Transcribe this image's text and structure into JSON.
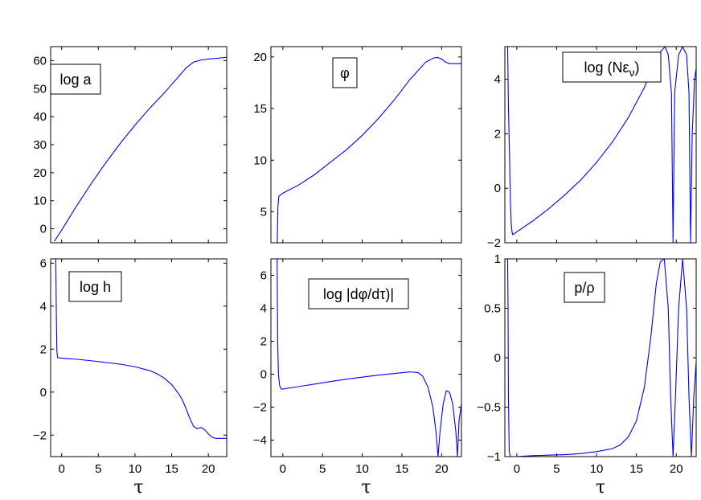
{
  "chart_data": [
    {
      "type": "line",
      "annotation": "log a",
      "xlabel": "",
      "xlim": [
        -1.5,
        22.5
      ],
      "ylim": [
        -5,
        65
      ],
      "xticks": [
        0,
        5,
        10,
        15,
        20
      ],
      "yticks": [
        0,
        10,
        20,
        30,
        40,
        50,
        60
      ],
      "color": "#0000ff",
      "x": [
        -1,
        0,
        2,
        4,
        6,
        8,
        10,
        12,
        14,
        15,
        16,
        17,
        18,
        19,
        20,
        21,
        22.5
      ],
      "y": [
        -4.5,
        -0.5,
        8,
        16,
        23.5,
        30.5,
        37,
        43,
        48.5,
        51.5,
        54.5,
        57.5,
        59.5,
        60.2,
        60.6,
        60.8,
        61.2
      ]
    },
    {
      "type": "line",
      "annotation": "φ",
      "xlabel": "",
      "xlim": [
        -1.5,
        22.5
      ],
      "ylim": [
        2,
        21
      ],
      "xticks": [
        0,
        5,
        10,
        15,
        20
      ],
      "yticks": [
        5,
        10,
        15,
        20
      ],
      "color": "#0000ff",
      "x": [
        -0.7,
        -0.62,
        -0.5,
        0,
        2,
        4,
        6,
        8,
        10,
        12,
        14,
        16,
        18,
        19,
        19.5,
        20,
        20.5,
        21,
        22.5
      ],
      "y": [
        2,
        5.5,
        6.5,
        6.8,
        7.6,
        8.6,
        9.8,
        11,
        12.4,
        14,
        15.8,
        17.8,
        19.5,
        19.9,
        19.95,
        19.8,
        19.5,
        19.35,
        19.35
      ]
    },
    {
      "type": "line",
      "annotation": "log (Nε_ν)",
      "xlabel": "",
      "xlim": [
        -1.5,
        22.5
      ],
      "ylim": [
        -2,
        5.2
      ],
      "xticks": [
        0,
        5,
        10,
        15,
        20
      ],
      "yticks": [
        -2,
        0,
        2,
        4
      ],
      "color": "#0000ff",
      "x": [
        -1.15,
        -1.05,
        -0.9,
        -0.8,
        -0.7,
        -0.6,
        -0.5,
        0,
        2,
        4,
        6,
        8,
        10,
        12,
        14,
        16,
        17,
        18,
        18.6,
        19.0,
        19.4,
        19.6,
        19.8,
        20.3,
        20.8,
        21.3,
        21.6,
        21.8,
        22,
        22.3,
        22.5
      ],
      "y": [
        5.2,
        3,
        1,
        -0.5,
        -1.3,
        -1.6,
        -1.7,
        -1.6,
        -1.2,
        -0.75,
        -0.25,
        0.3,
        0.95,
        1.7,
        2.6,
        3.7,
        4.4,
        5.0,
        5.2,
        4.9,
        3.5,
        -2,
        3.5,
        4.9,
        5.2,
        4.9,
        3.5,
        -2,
        2.0,
        4.0,
        4.4
      ]
    },
    {
      "type": "line",
      "annotation": "log h",
      "xlabel": "τ",
      "xlim": [
        -1.5,
        22.5
      ],
      "ylim": [
        -3,
        6.2
      ],
      "xticks": [
        0,
        5,
        10,
        15,
        20
      ],
      "yticks": [
        -2,
        0,
        2,
        4,
        6
      ],
      "color": "#0000ff",
      "x": [
        -0.8,
        -0.72,
        -0.65,
        -0.55,
        0,
        2,
        4,
        6,
        8,
        10,
        12,
        13,
        14,
        15,
        16,
        16.5,
        17,
        17.5,
        18,
        18.5,
        19,
        19.5,
        20,
        20.5,
        21,
        22.5
      ],
      "y": [
        6.2,
        3.5,
        1.9,
        1.6,
        1.58,
        1.53,
        1.46,
        1.38,
        1.3,
        1.18,
        1.0,
        0.85,
        0.65,
        0.35,
        -0.1,
        -0.4,
        -0.8,
        -1.25,
        -1.6,
        -1.7,
        -1.65,
        -1.75,
        -1.95,
        -2.1,
        -2.15,
        -2.15
      ]
    },
    {
      "type": "line",
      "annotation": "log |dφ/dτ)|",
      "xlabel": "τ",
      "xlim": [
        -1.5,
        22.5
      ],
      "ylim": [
        -5,
        7
      ],
      "xticks": [
        0,
        5,
        10,
        15,
        20
      ],
      "yticks": [
        -4,
        -2,
        0,
        2,
        4,
        6
      ],
      "color": "#0000ff",
      "x": [
        -0.72,
        -0.65,
        -0.55,
        -0.4,
        -0.2,
        0,
        2,
        4,
        6,
        8,
        10,
        12,
        14,
        16,
        17,
        17.6,
        18.3,
        18.9,
        19.3,
        19.55,
        19.8,
        20.2,
        20.6,
        21.0,
        21.4,
        21.8,
        22.0,
        22.2,
        22.5
      ],
      "y": [
        7,
        2,
        0,
        -0.7,
        -0.9,
        -0.9,
        -0.75,
        -0.6,
        -0.45,
        -0.3,
        -0.18,
        -0.06,
        0.04,
        0.14,
        0.1,
        -0.1,
        -0.8,
        -2.0,
        -3.5,
        -5,
        -3.5,
        -1.8,
        -1.0,
        -1.1,
        -1.8,
        -3.5,
        -5,
        -2.8,
        -1.8
      ]
    },
    {
      "type": "line",
      "annotation": "p/ρ",
      "xlabel": "τ",
      "xlim": [
        -1.5,
        22.5
      ],
      "ylim": [
        -1,
        1
      ],
      "xticks": [
        0,
        5,
        10,
        15,
        20
      ],
      "yticks": [
        -1,
        -0.5,
        0,
        0.5,
        1
      ],
      "color": "#0000ff",
      "x": [
        -1.15,
        -1.1,
        -1.05,
        -0.95,
        -0.8,
        0,
        2,
        4,
        6,
        8,
        10,
        12,
        13,
        14,
        15,
        16,
        16.8,
        17.5,
        18,
        18.5,
        19.0,
        19.3,
        19.6,
        19.9,
        20.3,
        20.8,
        21.3,
        21.6,
        21.9,
        22.2,
        22.5
      ],
      "y": [
        1,
        0.5,
        -0.4,
        -0.95,
        -1,
        -1,
        -0.99,
        -0.985,
        -0.98,
        -0.97,
        -0.95,
        -0.92,
        -0.88,
        -0.8,
        -0.64,
        -0.3,
        0.2,
        0.75,
        0.97,
        1.0,
        0.5,
        -0.4,
        -1.0,
        -0.4,
        0.5,
        1.0,
        0.5,
        -0.4,
        -1.0,
        -0.4,
        -0.05
      ]
    }
  ]
}
